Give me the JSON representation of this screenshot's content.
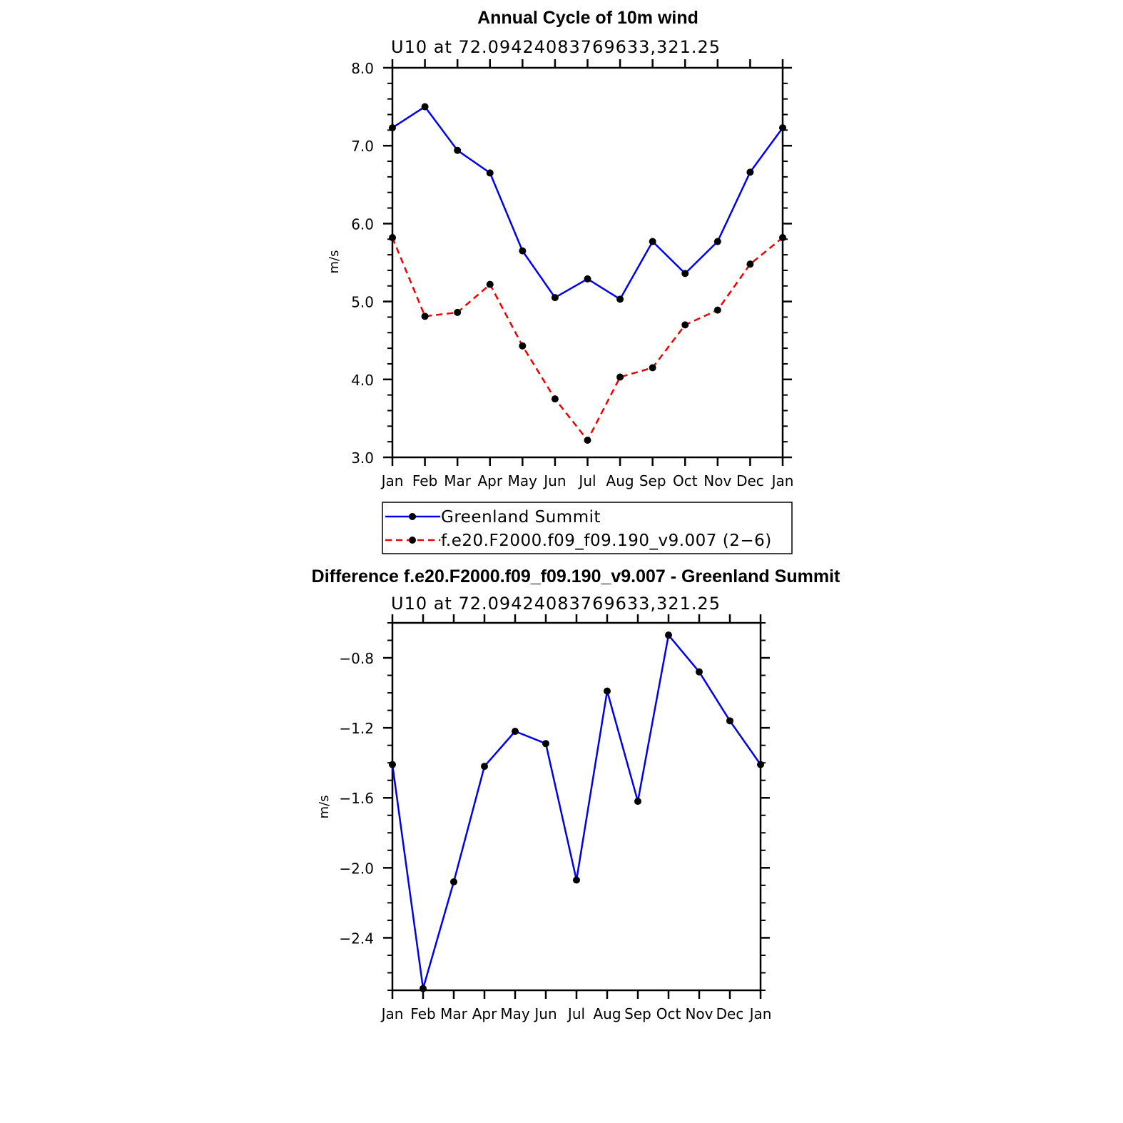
{
  "colors": {
    "series_blue": "#0000ee",
    "series_red": "#ee0000",
    "marker": "#000000"
  },
  "chart_data": [
    {
      "type": "line",
      "title": "Annual Cycle of 10m wind",
      "subtitle": "U10  at  72.09424083769633,321.25",
      "xlabel": "",
      "ylabel": "m/s",
      "categories": [
        "Jan",
        "Feb",
        "Mar",
        "Apr",
        "May",
        "Jun",
        "Jul",
        "Aug",
        "Sep",
        "Oct",
        "Nov",
        "Dec",
        "Jan"
      ],
      "ylim": [
        3.0,
        8.0
      ],
      "yticks": [
        3.0,
        4.0,
        5.0,
        6.0,
        7.0,
        8.0
      ],
      "ytick_labels": [
        "3.0",
        "4.0",
        "5.0",
        "6.0",
        "7.0",
        "8.0"
      ],
      "series": [
        {
          "name": "Greenland Summit",
          "style": "solid",
          "values": [
            7.23,
            7.5,
            6.94,
            6.65,
            5.65,
            5.05,
            5.29,
            5.03,
            5.77,
            5.36,
            5.77,
            6.66,
            7.23
          ]
        },
        {
          "name": "f.e20.F2000.f09_f09.190_v9.007 (2−6)",
          "style": "dashed",
          "values": [
            5.82,
            4.81,
            4.86,
            5.22,
            4.43,
            3.75,
            3.22,
            4.03,
            4.15,
            4.7,
            4.89,
            5.48,
            5.82
          ]
        }
      ],
      "legend_position": "bottom"
    },
    {
      "type": "line",
      "title": "Difference f.e20.F2000.f09_f09.190_v9.007 - Greenland Summit",
      "subtitle": "U10  at  72.09424083769633,321.25",
      "xlabel": "",
      "ylabel": "m/s",
      "categories": [
        "Jan",
        "Feb",
        "Mar",
        "Apr",
        "May",
        "Jun",
        "Jul",
        "Aug",
        "Sep",
        "Oct",
        "Nov",
        "Dec",
        "Jan"
      ],
      "ylim": [
        -2.7,
        -0.6
      ],
      "yticks": [
        -2.4,
        -2.0,
        -1.6,
        -1.2,
        -0.8
      ],
      "ytick_labels": [
        "−2.4",
        "−2.0",
        "−1.6",
        "−1.2",
        "−0.8"
      ],
      "series": [
        {
          "name": "Difference",
          "style": "solid",
          "values": [
            -1.41,
            -2.69,
            -2.08,
            -1.42,
            -1.22,
            -1.29,
            -2.07,
            -0.99,
            -1.62,
            -0.67,
            -0.88,
            -1.16,
            -1.41
          ]
        }
      ]
    }
  ]
}
